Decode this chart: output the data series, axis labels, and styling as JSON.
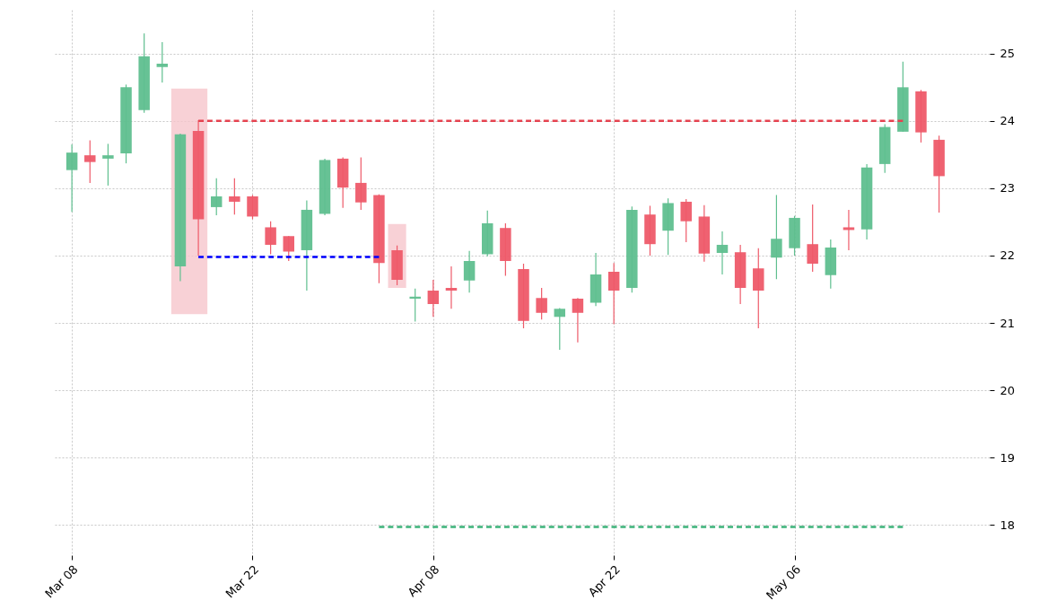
{
  "chart_data": {
    "type": "candlestick",
    "categories": [
      "Mar 08",
      null,
      null,
      null,
      null,
      null,
      null,
      null,
      null,
      null,
      "Mar 22",
      null,
      null,
      null,
      null,
      null,
      null,
      null,
      null,
      null,
      "Apr 08",
      null,
      null,
      null,
      null,
      null,
      null,
      null,
      null,
      null,
      "Apr 22",
      null,
      null,
      null,
      null,
      null,
      null,
      null,
      null,
      null,
      "May 06",
      null,
      null,
      null,
      null,
      null,
      null,
      null,
      null
    ],
    "ohlc": [
      [
        23.27,
        23.65,
        22.65,
        23.53
      ],
      [
        23.49,
        23.71,
        23.08,
        23.39
      ],
      [
        23.44,
        23.66,
        23.04,
        23.49
      ],
      [
        23.52,
        24.54,
        23.37,
        24.5
      ],
      [
        24.16,
        25.3,
        24.12,
        24.96
      ],
      [
        24.8,
        25.17,
        24.57,
        24.85
      ],
      [
        21.84,
        23.81,
        21.62,
        23.8
      ],
      [
        23.85,
        24.01,
        22.0,
        22.54
      ],
      [
        22.72,
        23.15,
        22.6,
        22.88
      ],
      [
        22.88,
        23.15,
        22.61,
        22.8
      ],
      [
        22.88,
        22.9,
        22.54,
        22.58
      ],
      [
        22.42,
        22.51,
        22.02,
        22.16
      ],
      [
        22.29,
        22.29,
        21.92,
        22.06
      ],
      [
        22.08,
        22.82,
        21.48,
        22.68
      ],
      [
        22.62,
        23.44,
        22.6,
        23.42
      ],
      [
        23.44,
        23.46,
        22.71,
        23.01
      ],
      [
        23.08,
        23.46,
        22.68,
        22.79
      ],
      [
        22.9,
        22.91,
        21.59,
        21.89
      ],
      [
        22.08,
        22.15,
        21.56,
        21.64
      ],
      [
        21.36,
        21.51,
        21.02,
        21.39
      ],
      [
        21.48,
        21.64,
        21.09,
        21.28
      ],
      [
        21.52,
        21.84,
        21.21,
        21.48
      ],
      [
        21.63,
        22.07,
        21.45,
        21.92
      ],
      [
        22.02,
        22.67,
        21.99,
        22.48
      ],
      [
        22.41,
        22.48,
        21.7,
        21.92
      ],
      [
        21.8,
        21.88,
        20.92,
        21.03
      ],
      [
        21.37,
        21.52,
        21.05,
        21.15
      ],
      [
        21.09,
        21.22,
        20.6,
        21.21
      ],
      [
        21.36,
        21.37,
        20.71,
        21.15
      ],
      [
        21.3,
        22.04,
        21.25,
        21.72
      ],
      [
        21.76,
        21.89,
        20.98,
        21.48
      ],
      [
        21.52,
        22.73,
        21.45,
        22.68
      ],
      [
        22.61,
        22.74,
        22.0,
        22.17
      ],
      [
        22.37,
        22.85,
        22.01,
        22.78
      ],
      [
        22.8,
        22.84,
        22.2,
        22.51
      ],
      [
        22.58,
        22.75,
        21.91,
        22.03
      ],
      [
        22.04,
        22.36,
        21.72,
        22.16
      ],
      [
        22.05,
        22.16,
        21.28,
        21.52
      ],
      [
        21.81,
        22.11,
        20.92,
        21.48
      ],
      [
        21.97,
        22.9,
        21.65,
        22.25
      ],
      [
        22.11,
        22.59,
        22.0,
        22.56
      ],
      [
        22.17,
        22.76,
        21.76,
        21.88
      ],
      [
        21.71,
        22.24,
        21.51,
        22.12
      ],
      [
        22.42,
        22.68,
        22.08,
        22.38
      ],
      [
        22.39,
        23.36,
        22.24,
        23.31
      ],
      [
        23.36,
        23.95,
        23.23,
        23.91
      ],
      [
        23.84,
        24.88,
        23.84,
        24.5
      ],
      [
        24.44,
        24.46,
        23.68,
        23.83
      ],
      [
        23.72,
        23.78,
        22.64,
        23.18
      ]
    ],
    "colors": [
      "#5fbf8f",
      "#ee5a69",
      "#5fbf8f",
      "#5fbf8f",
      "#5fbf8f",
      "#5fbf8f",
      "#5fbf8f",
      "#ee5a69",
      "#5fbf8f",
      "#ee5a69",
      "#ee5a69",
      "#ee5a69",
      "#ee5a69",
      "#5fbf8f",
      "#5fbf8f",
      "#ee5a69",
      "#ee5a69",
      "#ee5a69",
      "#ee5a69",
      "#5fbf8f",
      "#ee5a69",
      "#ee5a69",
      "#5fbf8f",
      "#5fbf8f",
      "#ee5a69",
      "#ee5a69",
      "#ee5a69",
      "#5fbf8f",
      "#ee5a69",
      "#5fbf8f",
      "#ee5a69",
      "#5fbf8f",
      "#ee5a69",
      "#5fbf8f",
      "#ee5a69",
      "#ee5a69",
      "#5fbf8f",
      "#ee5a69",
      "#ee5a69",
      "#5fbf8f",
      "#5fbf8f",
      "#ee5a69",
      "#5fbf8f",
      "#ee5a69",
      "#5fbf8f",
      "#5fbf8f",
      "#5fbf8f",
      "#ee5a69",
      "#ee5a69"
    ],
    "series": [
      {
        "type": "line",
        "color": "#e5424f",
        "line_style": "dashed",
        "values": [
          null,
          null,
          null,
          null,
          null,
          null,
          null,
          24.0,
          24.0,
          24.0,
          24.0,
          24.0,
          24.0,
          24.0,
          24.0,
          24.0,
          24.0,
          24.0,
          24.0,
          24.0,
          24.0,
          24.0,
          24.0,
          24.0,
          24.0,
          24.0,
          24.0,
          24.0,
          24.0,
          24.0,
          24.0,
          24.0,
          24.0,
          24.0,
          24.0,
          24.0,
          24.0,
          24.0,
          24.0,
          24.0,
          24.0,
          24.0,
          24.0,
          24.0,
          24.0,
          24.0,
          24.0,
          null,
          null
        ]
      },
      {
        "type": "line",
        "color": "#0000ff",
        "line_style": "dashed",
        "values": [
          null,
          null,
          null,
          null,
          null,
          null,
          null,
          21.98,
          21.98,
          21.98,
          21.98,
          21.98,
          21.98,
          21.98,
          21.98,
          21.98,
          21.98,
          21.98,
          null,
          null,
          null,
          null,
          null,
          null,
          null,
          null,
          null,
          null,
          null,
          null,
          null,
          null,
          null,
          null,
          null,
          null,
          null,
          null,
          null,
          null,
          null,
          null,
          null,
          null,
          null,
          null,
          null,
          null,
          null
        ]
      },
      {
        "type": "line",
        "color": "#3cb37a",
        "line_style": "dashed",
        "values": [
          null,
          null,
          null,
          null,
          null,
          null,
          null,
          null,
          null,
          null,
          null,
          null,
          null,
          null,
          null,
          null,
          null,
          17.97,
          17.97,
          17.97,
          17.97,
          17.97,
          17.97,
          17.97,
          17.97,
          17.97,
          17.97,
          17.97,
          17.97,
          17.97,
          17.97,
          17.97,
          17.97,
          17.97,
          17.97,
          17.97,
          17.97,
          17.97,
          17.97,
          17.97,
          17.97,
          17.97,
          17.97,
          17.97,
          17.97,
          17.97,
          17.97,
          null,
          null
        ]
      }
    ],
    "ylim": [
      17.55,
      25.65
    ],
    "yticks": [
      18,
      19,
      20,
      21,
      22,
      23,
      24,
      25
    ],
    "grid": true
  }
}
